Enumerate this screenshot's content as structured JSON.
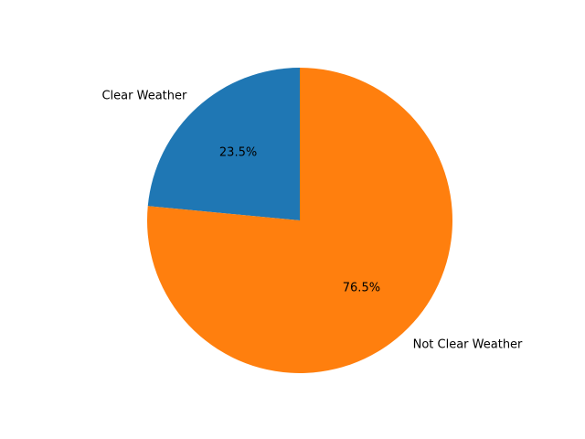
{
  "chart_data": {
    "type": "pie",
    "title": "",
    "categories": [
      "Clear Weather",
      "Not Clear Weather"
    ],
    "values": [
      23.5,
      76.5
    ],
    "percent_labels": [
      "23.5%",
      "76.5%"
    ],
    "colors": [
      "#1f77b4",
      "#ff7f0e"
    ],
    "start_angle_deg": 90,
    "direction": "counterclockwise",
    "legend": "none"
  }
}
